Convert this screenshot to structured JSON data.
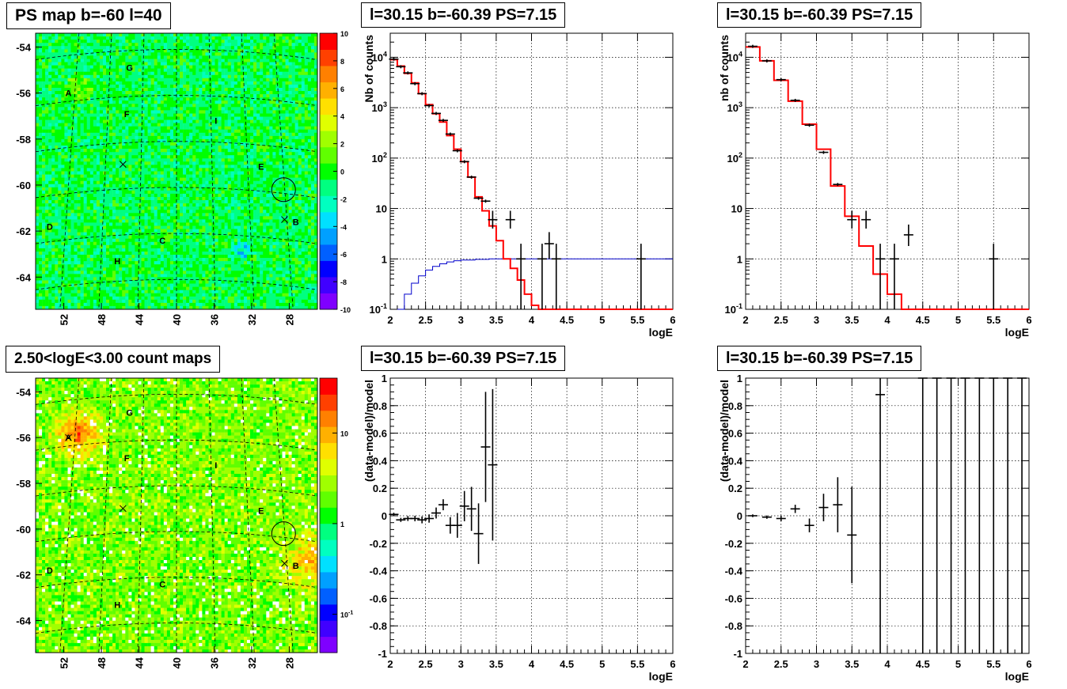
{
  "titles": {
    "ps_map": "PS map b=-60 l=40",
    "spec_left": "l=30.15 b=-60.39 PS=7.15",
    "spec_right": "l=30.15 b=-60.39 PS=7.15",
    "count_map": "2.50<logE<3.00 count maps",
    "resid_left": "l=30.15 b=-60.39 PS=7.15",
    "resid_right": "l=30.15 b=-60.39 PS=7.15"
  },
  "colors": {
    "histogram": "#ff0000",
    "acceptance": "#0000cc",
    "data": "#000000",
    "grid": "#000000",
    "palette": [
      "#7f00ff",
      "#4000ff",
      "#0000ff",
      "#0060ff",
      "#00a0ff",
      "#00e0ff",
      "#00ffc0",
      "#00ff80",
      "#00ff00",
      "#60ff00",
      "#a0ff00",
      "#e0ff00",
      "#ffe000",
      "#ffb000",
      "#ff8000",
      "#ff4000",
      "#ff0000"
    ]
  },
  "chart_data": [
    {
      "type": "heatmap",
      "title": "PS map b=-60 l=40",
      "x_ticks": [
        "52",
        "48",
        "44",
        "40",
        "36",
        "32",
        "28"
      ],
      "y_ticks": [
        "-54",
        "-56",
        "-58",
        "-60",
        "-62",
        "-64"
      ],
      "xlim": [
        55,
        25
      ],
      "ylim": [
        -65.4,
        -53.4
      ],
      "z_ticks": [
        "10",
        "8",
        "6",
        "4",
        "2",
        "0",
        "-2",
        "-4",
        "-6",
        "-8",
        "-10"
      ],
      "zlim": [
        -10,
        10
      ],
      "sources": [
        {
          "label": "A",
          "l": 51.5,
          "b": -56
        },
        {
          "label": "G",
          "l": 45,
          "b": -54.9
        },
        {
          "label": "F",
          "l": 45.3,
          "b": -56.9
        },
        {
          "label": "I",
          "l": 35.8,
          "b": -57.2
        },
        {
          "label": "E",
          "l": 31,
          "b": -59.2
        },
        {
          "label": "B",
          "l": 27.3,
          "b": -61.6
        },
        {
          "label": "D",
          "l": 53.5,
          "b": -61.8
        },
        {
          "label": "C",
          "l": 41.5,
          "b": -62.4
        },
        {
          "label": "H",
          "l": 46.3,
          "b": -63.3
        }
      ],
      "markers": [
        {
          "l": 45.7,
          "b": -59.1
        },
        {
          "l": 28.5,
          "b": -61.5
        }
      ],
      "circle": {
        "l": 28.6,
        "b": -60.2
      }
    },
    {
      "type": "line",
      "title": "l=30.15 b=-60.39 PS=7.15",
      "xlabel": "logE",
      "ylabel": "Nb of counts",
      "xlim": [
        2,
        6
      ],
      "ylim": [
        0.1,
        30000
      ],
      "log_y": true,
      "x_ticks": [
        "2",
        "2.5",
        "3",
        "3.5",
        "4",
        "4.5",
        "5",
        "5.5",
        "6"
      ],
      "y_ticks": [
        "10^-1",
        "1",
        "10",
        "10^2",
        "10^3",
        "10^4"
      ],
      "model_histogram": [
        {
          "x0": 2.0,
          "x1": 2.1,
          "y": 9000
        },
        {
          "x0": 2.1,
          "x1": 2.2,
          "y": 6700
        },
        {
          "x0": 2.2,
          "x1": 2.3,
          "y": 4800
        },
        {
          "x0": 2.3,
          "x1": 2.4,
          "y": 3100
        },
        {
          "x0": 2.4,
          "x1": 2.5,
          "y": 1900
        },
        {
          "x0": 2.5,
          "x1": 2.6,
          "y": 1150
        },
        {
          "x0": 2.6,
          "x1": 2.7,
          "y": 760
        },
        {
          "x0": 2.7,
          "x1": 2.8,
          "y": 520
        },
        {
          "x0": 2.8,
          "x1": 2.9,
          "y": 280
        },
        {
          "x0": 2.9,
          "x1": 3.0,
          "y": 150
        },
        {
          "x0": 3.0,
          "x1": 3.1,
          "y": 85
        },
        {
          "x0": 3.1,
          "x1": 3.2,
          "y": 42
        },
        {
          "x0": 3.2,
          "x1": 3.3,
          "y": 17
        },
        {
          "x0": 3.3,
          "x1": 3.4,
          "y": 9
        },
        {
          "x0": 3.4,
          "x1": 3.5,
          "y": 4.5
        },
        {
          "x0": 3.5,
          "x1": 3.6,
          "y": 2.3
        },
        {
          "x0": 3.6,
          "x1": 3.7,
          "y": 1.0
        },
        {
          "x0": 3.7,
          "x1": 3.8,
          "y": 0.65
        },
        {
          "x0": 3.8,
          "x1": 3.9,
          "y": 0.38
        },
        {
          "x0": 3.9,
          "x1": 4.0,
          "y": 0.2
        },
        {
          "x0": 4.0,
          "x1": 4.1,
          "y": 0.12
        },
        {
          "x0": 4.1,
          "x1": 6.0,
          "y": 0.1
        }
      ],
      "acceptance_curve": [
        {
          "x": 2.1,
          "y": 0.1
        },
        {
          "x": 2.2,
          "y": 0.2
        },
        {
          "x": 2.3,
          "y": 0.33
        },
        {
          "x": 2.4,
          "y": 0.46
        },
        {
          "x": 2.5,
          "y": 0.6
        },
        {
          "x": 2.6,
          "y": 0.71
        },
        {
          "x": 2.7,
          "y": 0.8
        },
        {
          "x": 2.8,
          "y": 0.87
        },
        {
          "x": 2.9,
          "y": 0.92
        },
        {
          "x": 3.0,
          "y": 0.95
        },
        {
          "x": 3.2,
          "y": 0.98
        },
        {
          "x": 3.4,
          "y": 1.0
        },
        {
          "x": 6.0,
          "y": 1.0
        }
      ],
      "data_points": [
        {
          "x": 2.05,
          "y": 9200
        },
        {
          "x": 2.15,
          "y": 6500
        },
        {
          "x": 2.25,
          "y": 4900
        },
        {
          "x": 2.35,
          "y": 3000
        },
        {
          "x": 2.45,
          "y": 1900
        },
        {
          "x": 2.55,
          "y": 1100
        },
        {
          "x": 2.65,
          "y": 770
        },
        {
          "x": 2.75,
          "y": 560
        },
        {
          "x": 2.85,
          "y": 300
        },
        {
          "x": 2.95,
          "y": 140
        },
        {
          "x": 3.05,
          "y": 85
        },
        {
          "x": 3.15,
          "y": 42
        },
        {
          "x": 3.25,
          "y": 16
        },
        {
          "x": 3.35,
          "y": 14
        },
        {
          "x": 3.45,
          "y": 6,
          "lo": 4,
          "hi": 9
        },
        {
          "x": 3.7,
          "y": 6,
          "lo": 4,
          "hi": 9
        },
        {
          "x": 3.85,
          "y": 1,
          "lo": 0.1,
          "hi": 2
        },
        {
          "x": 4.15,
          "y": 1,
          "lo": 0.1,
          "hi": 2
        },
        {
          "x": 4.25,
          "y": 2,
          "lo": 1,
          "hi": 3.4
        },
        {
          "x": 4.35,
          "y": 1,
          "lo": 0.1,
          "hi": 2
        },
        {
          "x": 5.55,
          "y": 1,
          "lo": 0.1,
          "hi": 2
        }
      ]
    },
    {
      "type": "line",
      "title": "l=30.15 b=-60.39 PS=7.15",
      "xlabel": "logE",
      "ylabel": "nb of counts",
      "xlim": [
        2,
        6
      ],
      "ylim": [
        0.1,
        30000
      ],
      "log_y": true,
      "x_ticks": [
        "2",
        "2.5",
        "3",
        "3.5",
        "4",
        "4.5",
        "5",
        "5.5",
        "6"
      ],
      "y_ticks": [
        "10^-1",
        "1",
        "10",
        "10^2",
        "10^3",
        "10^4"
      ],
      "model_histogram": [
        {
          "x0": 2.0,
          "x1": 2.2,
          "y": 16000
        },
        {
          "x0": 2.2,
          "x1": 2.4,
          "y": 8500
        },
        {
          "x0": 2.4,
          "x1": 2.6,
          "y": 3500
        },
        {
          "x0": 2.6,
          "x1": 2.8,
          "y": 1350
        },
        {
          "x0": 2.8,
          "x1": 3.0,
          "y": 470
        },
        {
          "x0": 3.0,
          "x1": 3.2,
          "y": 150
        },
        {
          "x0": 3.2,
          "x1": 3.4,
          "y": 28
        },
        {
          "x0": 3.4,
          "x1": 3.6,
          "y": 7
        },
        {
          "x0": 3.6,
          "x1": 3.8,
          "y": 1.8
        },
        {
          "x0": 3.8,
          "x1": 4.0,
          "y": 0.5
        },
        {
          "x0": 4.0,
          "x1": 4.2,
          "y": 0.2
        },
        {
          "x0": 4.2,
          "x1": 6.0,
          "y": 0.1
        }
      ],
      "data_points": [
        {
          "x": 2.1,
          "y": 16500
        },
        {
          "x": 2.3,
          "y": 8500
        },
        {
          "x": 2.5,
          "y": 3600
        },
        {
          "x": 2.7,
          "y": 1400
        },
        {
          "x": 2.9,
          "y": 450
        },
        {
          "x": 3.1,
          "y": 130
        },
        {
          "x": 3.3,
          "y": 30
        },
        {
          "x": 3.5,
          "y": 6,
          "lo": 4,
          "hi": 9
        },
        {
          "x": 3.7,
          "y": 6,
          "lo": 4,
          "hi": 9
        },
        {
          "x": 3.9,
          "y": 1,
          "lo": 0.1,
          "hi": 2
        },
        {
          "x": 4.1,
          "y": 1,
          "lo": 0.1,
          "hi": 2
        },
        {
          "x": 4.3,
          "y": 3,
          "lo": 1.8,
          "hi": 4.8
        },
        {
          "x": 5.5,
          "y": 1,
          "lo": 0.1,
          "hi": 2
        }
      ]
    },
    {
      "type": "heatmap",
      "title": "2.50<logE<3.00 count maps",
      "x_ticks": [
        "52",
        "48",
        "44",
        "40",
        "36",
        "32",
        "28"
      ],
      "y_ticks": [
        "-54",
        "-56",
        "-58",
        "-60",
        "-62",
        "-64"
      ],
      "xlim": [
        55,
        25
      ],
      "ylim": [
        -65.4,
        -53.4
      ],
      "z_ticks": [
        "10",
        "1",
        "10^-1"
      ],
      "log_z": true,
      "sources": [
        {
          "label": "A",
          "l": 51.5,
          "b": -56
        },
        {
          "label": "G",
          "l": 45,
          "b": -54.9
        },
        {
          "label": "F",
          "l": 45.3,
          "b": -56.9
        },
        {
          "label": "I",
          "l": 35.8,
          "b": -57.2
        },
        {
          "label": "E",
          "l": 31,
          "b": -59.2
        },
        {
          "label": "B",
          "l": 27.3,
          "b": -61.6
        },
        {
          "label": "D",
          "l": 53.5,
          "b": -61.8
        },
        {
          "label": "C",
          "l": 41.5,
          "b": -62.4
        },
        {
          "label": "H",
          "l": 46.3,
          "b": -63.3
        }
      ],
      "markers": [
        {
          "l": 51.5,
          "b": -56
        },
        {
          "l": 45.7,
          "b": -59.1
        },
        {
          "l": 28.5,
          "b": -61.5
        }
      ],
      "circle": {
        "l": 28.6,
        "b": -60.2
      }
    },
    {
      "type": "scatter",
      "title": "l=30.15 b=-60.39 PS=7.15",
      "xlabel": "logE",
      "ylabel": "(data-model)/model",
      "xlim": [
        2,
        6
      ],
      "ylim": [
        -1,
        1
      ],
      "x_ticks": [
        "2",
        "2.5",
        "3",
        "3.5",
        "4",
        "4.5",
        "5",
        "5.5",
        "6"
      ],
      "y_ticks": [
        "-1",
        "-0.8",
        "-0.6",
        "-0.4",
        "-0.2",
        "0",
        "0.2",
        "0.4",
        "0.6",
        "0.8",
        "1"
      ],
      "points": [
        {
          "x": 2.05,
          "y": 0.01,
          "err": 0.012
        },
        {
          "x": 2.15,
          "y": -0.03,
          "err": 0.015
        },
        {
          "x": 2.25,
          "y": -0.02,
          "err": 0.018
        },
        {
          "x": 2.35,
          "y": -0.02,
          "err": 0.02
        },
        {
          "x": 2.45,
          "y": -0.03,
          "err": 0.025
        },
        {
          "x": 2.55,
          "y": -0.02,
          "err": 0.03
        },
        {
          "x": 2.65,
          "y": 0.02,
          "err": 0.04
        },
        {
          "x": 2.75,
          "y": 0.08,
          "err": 0.04
        },
        {
          "x": 2.85,
          "y": -0.07,
          "err": 0.06
        },
        {
          "x": 2.95,
          "y": -0.07,
          "err": 0.09
        },
        {
          "x": 3.05,
          "y": 0.07,
          "err": 0.11
        },
        {
          "x": 3.15,
          "y": 0.05,
          "err": 0.16
        },
        {
          "x": 3.25,
          "y": -0.13,
          "err": 0.22
        },
        {
          "x": 3.35,
          "y": 0.5,
          "err": 0.4
        },
        {
          "x": 3.45,
          "y": 0.37,
          "err": 0.55
        }
      ]
    },
    {
      "type": "scatter",
      "title": "l=30.15 b=-60.39 PS=7.15",
      "xlabel": "logE",
      "ylabel": "(data-model)/model",
      "xlim": [
        2,
        6
      ],
      "ylim": [
        -1,
        1
      ],
      "x_ticks": [
        "2",
        "2.5",
        "3",
        "3.5",
        "4",
        "4.5",
        "5",
        "5.5",
        "6"
      ],
      "y_ticks": [
        "-1",
        "-0.8",
        "-0.6",
        "-0.4",
        "-0.2",
        "0",
        "0.2",
        "0.4",
        "0.6",
        "0.8",
        "1"
      ],
      "points": [
        {
          "x": 2.1,
          "y": 0.0,
          "err": 0.01
        },
        {
          "x": 2.3,
          "y": -0.01,
          "err": 0.012
        },
        {
          "x": 2.5,
          "y": -0.02,
          "err": 0.02
        },
        {
          "x": 2.7,
          "y": 0.05,
          "err": 0.03
        },
        {
          "x": 2.9,
          "y": -0.07,
          "err": 0.05
        },
        {
          "x": 3.1,
          "y": 0.06,
          "err": 0.1
        },
        {
          "x": 3.3,
          "y": 0.08,
          "err": 0.2
        },
        {
          "x": 3.5,
          "y": -0.14,
          "err": 0.35
        },
        {
          "x": 3.9,
          "y": 0.88,
          "err": 1.9
        },
        {
          "x": 4.5,
          "y": 1.0,
          "err": 2
        },
        {
          "x": 4.7,
          "y": 1.0,
          "err": 2
        },
        {
          "x": 4.9,
          "y": 1.0,
          "err": 2
        },
        {
          "x": 5.1,
          "y": 1.0,
          "err": 2
        },
        {
          "x": 5.3,
          "y": 1.0,
          "err": 2
        },
        {
          "x": 5.5,
          "y": 1.0,
          "err": 2
        },
        {
          "x": 5.7,
          "y": 1.0,
          "err": 2
        },
        {
          "x": 5.9,
          "y": 1.0,
          "err": 2
        }
      ]
    }
  ]
}
